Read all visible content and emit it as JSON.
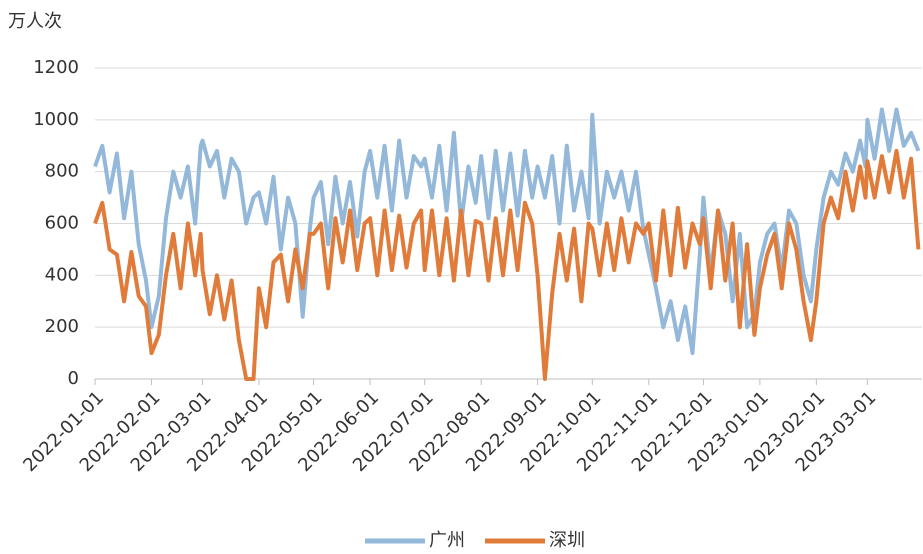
{
  "chart_data": {
    "type": "line",
    "y_unit": "万人次",
    "x": [
      "2022-01-01",
      "2022-01-05",
      "2022-01-09",
      "2022-01-13",
      "2022-01-17",
      "2022-01-21",
      "2022-01-25",
      "2022-01-29",
      "2022-02-01",
      "2022-02-05",
      "2022-02-09",
      "2022-02-13",
      "2022-02-17",
      "2022-02-21",
      "2022-02-25",
      "2022-02-28",
      "2022-03-01",
      "2022-03-05",
      "2022-03-09",
      "2022-03-13",
      "2022-03-17",
      "2022-03-21",
      "2022-03-25",
      "2022-03-29",
      "2022-04-01",
      "2022-04-05",
      "2022-04-09",
      "2022-04-13",
      "2022-04-17",
      "2022-04-21",
      "2022-04-25",
      "2022-04-29",
      "2022-05-01",
      "2022-05-05",
      "2022-05-09",
      "2022-05-13",
      "2022-05-17",
      "2022-05-21",
      "2022-05-25",
      "2022-05-29",
      "2022-06-01",
      "2022-06-05",
      "2022-06-09",
      "2022-06-13",
      "2022-06-17",
      "2022-06-21",
      "2022-06-25",
      "2022-06-29",
      "2022-07-01",
      "2022-07-05",
      "2022-07-09",
      "2022-07-13",
      "2022-07-17",
      "2022-07-21",
      "2022-07-25",
      "2022-07-29",
      "2022-08-01",
      "2022-08-05",
      "2022-08-09",
      "2022-08-13",
      "2022-08-17",
      "2022-08-21",
      "2022-08-25",
      "2022-08-29",
      "2022-09-01",
      "2022-09-05",
      "2022-09-09",
      "2022-09-13",
      "2022-09-17",
      "2022-09-21",
      "2022-09-25",
      "2022-09-29",
      "2022-10-01",
      "2022-10-05",
      "2022-10-09",
      "2022-10-13",
      "2022-10-17",
      "2022-10-21",
      "2022-10-25",
      "2022-10-29",
      "2022-11-01",
      "2022-11-05",
      "2022-11-09",
      "2022-11-13",
      "2022-11-17",
      "2022-11-21",
      "2022-11-25",
      "2022-11-29",
      "2022-12-01",
      "2022-12-05",
      "2022-12-09",
      "2022-12-13",
      "2022-12-17",
      "2022-12-21",
      "2022-12-25",
      "2022-12-29",
      "2023-01-01",
      "2023-01-05",
      "2023-01-09",
      "2023-01-13",
      "2023-01-17",
      "2023-01-21",
      "2023-01-25",
      "2023-01-29",
      "2023-02-01",
      "2023-02-05",
      "2023-02-09",
      "2023-02-13",
      "2023-02-17",
      "2023-02-21",
      "2023-02-25",
      "2023-02-28",
      "2023-03-01",
      "2023-03-05",
      "2023-03-09",
      "2023-03-13",
      "2023-03-17",
      "2023-03-21",
      "2023-03-25",
      "2023-03-29"
    ],
    "series": [
      {
        "name": "广州",
        "color": "#94b8da",
        "values": [
          820,
          900,
          720,
          870,
          620,
          800,
          520,
          380,
          200,
          320,
          620,
          800,
          700,
          820,
          600,
          900,
          920,
          820,
          880,
          700,
          850,
          800,
          600,
          700,
          720,
          600,
          780,
          500,
          700,
          600,
          240,
          580,
          700,
          760,
          520,
          780,
          600,
          760,
          550,
          800,
          880,
          700,
          900,
          650,
          920,
          700,
          860,
          820,
          850,
          700,
          900,
          650,
          950,
          600,
          820,
          680,
          860,
          620,
          880,
          650,
          870,
          630,
          880,
          700,
          820,
          700,
          860,
          600,
          900,
          650,
          800,
          620,
          1020,
          600,
          800,
          700,
          800,
          650,
          800,
          580,
          480,
          350,
          200,
          300,
          150,
          280,
          100,
          480,
          700,
          400,
          650,
          560,
          300,
          560,
          200,
          250,
          450,
          560,
          600,
          420,
          650,
          600,
          400,
          300,
          500,
          700,
          800,
          750,
          870,
          800,
          920,
          820,
          1000,
          850,
          1040,
          880,
          1040,
          900,
          950,
          880
        ]
      },
      {
        "name": "深圳",
        "color": "#e07b39",
        "values": [
          600,
          680,
          500,
          480,
          300,
          490,
          320,
          280,
          100,
          170,
          400,
          560,
          350,
          600,
          400,
          560,
          420,
          250,
          400,
          230,
          380,
          150,
          0,
          0,
          350,
          200,
          450,
          480,
          300,
          500,
          350,
          560,
          560,
          600,
          350,
          620,
          450,
          650,
          420,
          600,
          620,
          400,
          650,
          420,
          630,
          430,
          600,
          650,
          420,
          650,
          400,
          620,
          380,
          650,
          400,
          610,
          600,
          380,
          620,
          400,
          650,
          420,
          680,
          600,
          400,
          0,
          330,
          560,
          380,
          580,
          300,
          600,
          580,
          400,
          600,
          420,
          620,
          450,
          600,
          560,
          600,
          380,
          650,
          400,
          660,
          430,
          600,
          520,
          620,
          350,
          650,
          380,
          600,
          200,
          520,
          170,
          350,
          480,
          560,
          350,
          600,
          500,
          300,
          150,
          300,
          600,
          700,
          620,
          800,
          650,
          820,
          700,
          840,
          700,
          860,
          720,
          880,
          700,
          850,
          500
        ]
      }
    ],
    "xlim": [
      "2022-01-01",
      "2023-03-31"
    ],
    "xticks": [
      "2022-01-01",
      "2022-02-01",
      "2022-03-01",
      "2022-04-01",
      "2022-05-01",
      "2022-06-01",
      "2022-07-01",
      "2022-08-01",
      "2022-09-01",
      "2022-10-01",
      "2022-11-01",
      "2022-12-01",
      "2023-01-01",
      "2023-02-01",
      "2023-03-01"
    ],
    "ylim": [
      0,
      1200
    ],
    "yticks": [
      0,
      200,
      400,
      600,
      800,
      1000,
      1200
    ],
    "grid": true,
    "legend": "bottom"
  }
}
